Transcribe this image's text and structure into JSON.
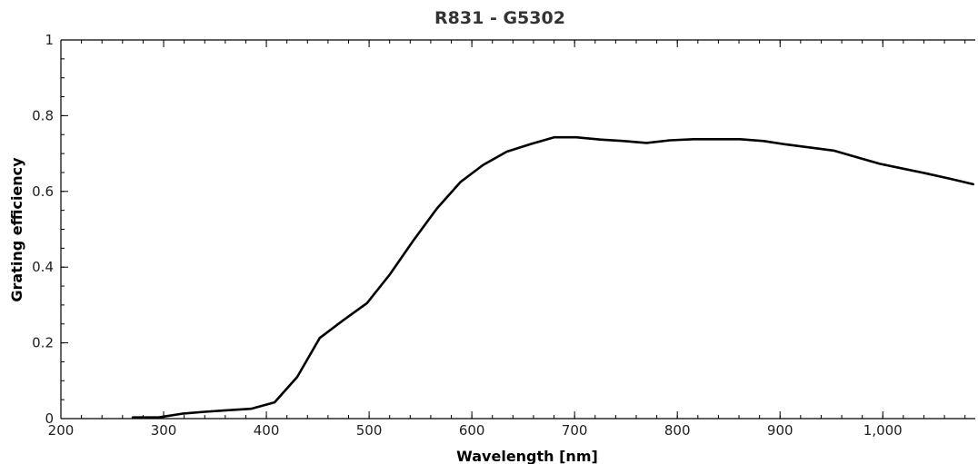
{
  "chart_data": {
    "type": "line",
    "title": "R831 - G5302",
    "xlabel": "Wavelength [nm]",
    "ylabel": "Grating efficiency",
    "xlim": [
      200,
      1090
    ],
    "ylim": [
      0,
      1
    ],
    "x_ticks": [
      200,
      300,
      400,
      500,
      600,
      700,
      800,
      900,
      1000
    ],
    "x_tick_labels": [
      "200",
      "300",
      "400",
      "500",
      "600",
      "700",
      "800",
      "900",
      "1,000"
    ],
    "x_minor_step": 20,
    "y_ticks": [
      0,
      0.2,
      0.4,
      0.6,
      0.8,
      1
    ],
    "y_tick_labels": [
      "0",
      "0.2",
      "0.4",
      "0.6",
      "0.8",
      "1"
    ],
    "y_minor_step": 0.05,
    "grid": false,
    "series": [
      {
        "color": "#000000",
        "x": [
          270,
          295,
          318,
          340,
          362,
          385,
          408,
          430,
          452,
          475,
          498,
          520,
          543,
          566,
          589,
          611,
          634,
          657,
          680,
          702,
          725,
          748,
          770,
          793,
          816,
          838,
          861,
          884,
          906,
          929,
          952,
          975,
          997,
          1020,
          1043,
          1066,
          1088
        ],
        "y": [
          0.003,
          0.003,
          0.013,
          0.018,
          0.022,
          0.026,
          0.043,
          0.11,
          0.213,
          0.26,
          0.305,
          0.38,
          0.47,
          0.555,
          0.625,
          0.67,
          0.705,
          0.725,
          0.743,
          0.743,
          0.737,
          0.733,
          0.728,
          0.735,
          0.738,
          0.738,
          0.738,
          0.733,
          0.724,
          0.716,
          0.708,
          0.69,
          0.673,
          0.66,
          0.647,
          0.633,
          0.619
        ]
      }
    ]
  }
}
